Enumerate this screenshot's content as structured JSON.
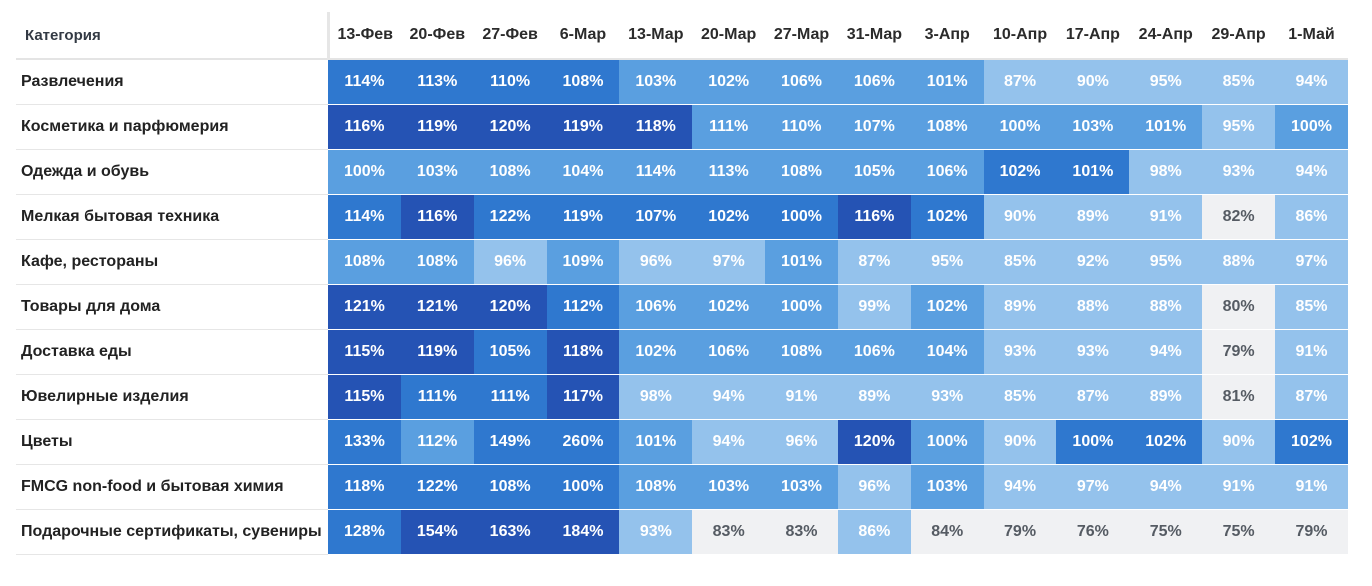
{
  "colors": {
    "scale": [
      "#f0f1f3",
      "#bcd8f1",
      "#94c2ec",
      "#5a9fe0",
      "#2f78cf",
      "#2553b4"
    ],
    "text_light": "#ffffff",
    "text_dark": "#555b63"
  },
  "chart_data": {
    "type": "heatmap",
    "corner_label": "Категория",
    "columns": [
      "13-Фев",
      "20-Фев",
      "27-Фев",
      "6-Мар",
      "13-Мар",
      "20-Мар",
      "27-Мар",
      "31-Мар",
      "3-Апр",
      "10-Апр",
      "17-Апр",
      "24-Апр",
      "29-Апр",
      "1-Май"
    ],
    "rows": [
      {
        "label": "Развлечения",
        "values": [
          114,
          113,
          110,
          108,
          103,
          102,
          106,
          106,
          101,
          87,
          90,
          95,
          85,
          94
        ]
      },
      {
        "label": "Косметика и парфюмерия",
        "values": [
          116,
          119,
          120,
          119,
          118,
          111,
          110,
          107,
          108,
          100,
          103,
          101,
          95,
          100
        ]
      },
      {
        "label": "Одежда и обувь",
        "values": [
          100,
          103,
          108,
          104,
          114,
          113,
          108,
          105,
          106,
          102,
          101,
          98,
          93,
          94
        ]
      },
      {
        "label": "Мелкая бытовая техника",
        "values": [
          114,
          116,
          122,
          119,
          107,
          102,
          100,
          116,
          102,
          90,
          89,
          91,
          82,
          86
        ]
      },
      {
        "label": "Кафе, рестораны",
        "values": [
          108,
          108,
          96,
          109,
          96,
          97,
          101,
          87,
          95,
          85,
          92,
          95,
          88,
          97
        ]
      },
      {
        "label": "Товары для дома",
        "values": [
          121,
          121,
          120,
          112,
          106,
          102,
          100,
          99,
          102,
          89,
          88,
          88,
          80,
          85
        ]
      },
      {
        "label": "Доставка еды",
        "values": [
          115,
          119,
          105,
          118,
          102,
          106,
          108,
          106,
          104,
          93,
          93,
          94,
          79,
          91
        ]
      },
      {
        "label": "Ювелирные изделия",
        "values": [
          115,
          111,
          111,
          117,
          98,
          94,
          91,
          89,
          93,
          85,
          87,
          89,
          81,
          87
        ]
      },
      {
        "label": "Цветы",
        "values": [
          133,
          112,
          149,
          260,
          101,
          94,
          96,
          120,
          100,
          90,
          100,
          102,
          90,
          102
        ]
      },
      {
        "label": "FMCG non-food и бытовая химия",
        "values": [
          118,
          122,
          108,
          100,
          108,
          103,
          103,
          96,
          103,
          94,
          97,
          94,
          91,
          91
        ]
      },
      {
        "label": "Подарочные сертификаты, сувениры",
        "values": [
          128,
          154,
          163,
          184,
          93,
          83,
          83,
          86,
          84,
          79,
          76,
          75,
          75,
          79
        ]
      }
    ],
    "levels": [
      [
        4,
        4,
        4,
        4,
        3,
        3,
        3,
        3,
        3,
        2,
        2,
        2,
        2,
        2
      ],
      [
        5,
        5,
        5,
        5,
        5,
        3,
        3,
        3,
        3,
        3,
        3,
        3,
        2,
        3
      ],
      [
        3,
        3,
        3,
        3,
        3,
        3,
        3,
        3,
        3,
        4,
        4,
        2,
        2,
        2
      ],
      [
        4,
        5,
        4,
        4,
        4,
        4,
        4,
        5,
        4,
        2,
        2,
        2,
        0,
        2
      ],
      [
        3,
        3,
        2,
        3,
        2,
        2,
        3,
        2,
        2,
        2,
        2,
        2,
        2,
        2
      ],
      [
        5,
        5,
        5,
        4,
        3,
        3,
        3,
        2,
        3,
        2,
        2,
        2,
        0,
        2
      ],
      [
        5,
        5,
        4,
        5,
        3,
        3,
        3,
        3,
        3,
        2,
        2,
        2,
        0,
        2
      ],
      [
        5,
        4,
        4,
        5,
        2,
        2,
        2,
        2,
        2,
        2,
        2,
        2,
        0,
        2
      ],
      [
        4,
        3,
        4,
        4,
        3,
        2,
        2,
        5,
        3,
        2,
        4,
        4,
        2,
        4
      ],
      [
        4,
        4,
        4,
        4,
        3,
        3,
        3,
        2,
        3,
        2,
        2,
        2,
        2,
        2
      ],
      [
        4,
        5,
        5,
        5,
        2,
        0,
        0,
        2,
        0,
        0,
        0,
        0,
        0,
        0
      ]
    ],
    "value_suffix": "%"
  },
  "footnote": ""
}
